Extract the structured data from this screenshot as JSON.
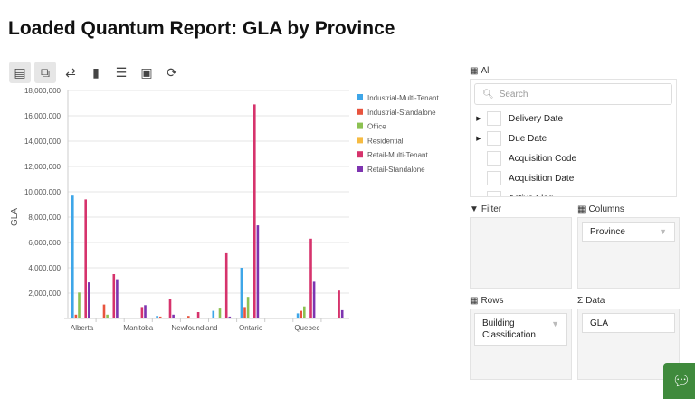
{
  "title": "Loaded Quantum Report: GLA by Province",
  "toolbar": [
    {
      "icon": "edit-table-icon",
      "active": true
    },
    {
      "icon": "format-icon",
      "active": true
    },
    {
      "icon": "swap-icon",
      "active": false
    },
    {
      "icon": "bar-chart-icon",
      "active": false
    },
    {
      "icon": "fields-check-icon",
      "active": false
    },
    {
      "icon": "layout-icon",
      "active": false
    },
    {
      "icon": "refresh-icon",
      "active": false
    }
  ],
  "chart_data": {
    "type": "bar",
    "title": "",
    "xlabel": "",
    "ylabel": "GLA",
    "ylim": [
      0,
      18000000
    ],
    "yticks": [
      "2,000,000",
      "4,000,000",
      "6,000,000",
      "8,000,000",
      "10,000,000",
      "12,000,000",
      "14,000,000",
      "16,000,000",
      "18,000,000"
    ],
    "categories": [
      "Alberta",
      "",
      "Manitoba",
      "",
      "Newfoundland",
      "",
      "Ontario",
      "",
      "Quebec",
      ""
    ],
    "legend_position": "top-right",
    "grid": true,
    "series": [
      {
        "name": "Industrial-Multi-Tenant",
        "color": "#3ea6e8",
        "values": [
          9700000,
          0,
          0,
          200000,
          0,
          600000,
          4000000,
          50000,
          400000,
          0
        ]
      },
      {
        "name": "Industrial-Standalone",
        "color": "#e8543e",
        "values": [
          300000,
          1100000,
          0,
          150000,
          200000,
          0,
          900000,
          0,
          600000,
          0
        ]
      },
      {
        "name": "Office",
        "color": "#8cc152",
        "values": [
          2050000,
          300000,
          0,
          0,
          0,
          850000,
          1700000,
          0,
          950000,
          0
        ]
      },
      {
        "name": "Residential",
        "color": "#f6bb42",
        "values": [
          0,
          0,
          0,
          0,
          0,
          0,
          0,
          0,
          0,
          0
        ]
      },
      {
        "name": "Retail-Multi-Tenant",
        "color": "#d6336c",
        "values": [
          9400000,
          3500000,
          900000,
          1550000,
          500000,
          5150000,
          16900000,
          0,
          6300000,
          2200000
        ]
      },
      {
        "name": "Retail-Standalone",
        "color": "#7e34b0",
        "values": [
          2850000,
          3100000,
          1050000,
          300000,
          0,
          150000,
          7350000,
          0,
          2900000,
          650000
        ]
      }
    ]
  },
  "fields": {
    "all_label": "All",
    "search_placeholder": "Search",
    "items": [
      "Delivery Date",
      "Due Date",
      "Acquisition Code",
      "Acquisition Date",
      "Active Flag"
    ]
  },
  "filter": {
    "label": "Filter"
  },
  "columns": {
    "label": "Columns",
    "items": [
      "Province"
    ]
  },
  "rows": {
    "label": "Rows",
    "items": [
      "Building Classification"
    ]
  },
  "data": {
    "label": "Data",
    "items": [
      "GLA"
    ]
  }
}
